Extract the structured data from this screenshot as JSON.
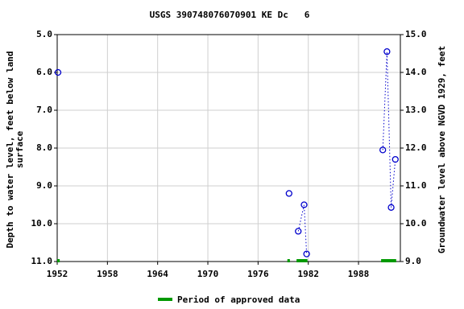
{
  "chart_data": {
    "type": "line",
    "title": "USGS 390748076070901 KE Dc   6",
    "ylabel": [
      "Depth to water level, feet below land",
      "surface"
    ],
    "y2label": "Groundwater level above NGVD 1929, feet",
    "xlim": [
      1952,
      1993
    ],
    "xticks": [
      1952,
      1958,
      1964,
      1970,
      1976,
      1982,
      1988
    ],
    "ylim": [
      5,
      11
    ],
    "yticks": [
      {
        "value": 5,
        "label": "5.0"
      },
      {
        "value": 6,
        "label": "6.0"
      },
      {
        "value": 7,
        "label": "7.0"
      },
      {
        "value": 8,
        "label": "8.0"
      },
      {
        "value": 9,
        "label": "9.0"
      },
      {
        "value": 10,
        "label": "10.0"
      },
      {
        "value": 11,
        "label": "11.0"
      }
    ],
    "y2lim": [
      15,
      9
    ],
    "y2ticks": [
      {
        "value": 15,
        "label": "15.0"
      },
      {
        "value": 14,
        "label": "14.0"
      },
      {
        "value": 13,
        "label": "13.0"
      },
      {
        "value": 12,
        "label": "12.0"
      },
      {
        "value": 11,
        "label": "11.0"
      },
      {
        "value": 10,
        "label": "10.0"
      },
      {
        "value": 9,
        "label": "9.0"
      }
    ],
    "grid": true,
    "series": [
      {
        "color": "#0000cc",
        "x": [
          1952.1,
          null,
          1979.7,
          null,
          1980.8,
          1981.5,
          1981.8,
          null,
          1990.9,
          1991.4,
          1991.9,
          1992.4
        ],
        "values": [
          6.0,
          null,
          9.2,
          null,
          10.2,
          9.5,
          10.8,
          null,
          8.05,
          5.45,
          9.57,
          8.3
        ]
      }
    ],
    "approved_periods": {
      "name": "Period of approved data",
      "color": "#009900",
      "ranges": [
        [
          1952,
          1952.3
        ],
        [
          1979.5,
          1979.8
        ],
        [
          1980.6,
          1981.9
        ],
        [
          1990.7,
          1992.5
        ]
      ]
    }
  }
}
